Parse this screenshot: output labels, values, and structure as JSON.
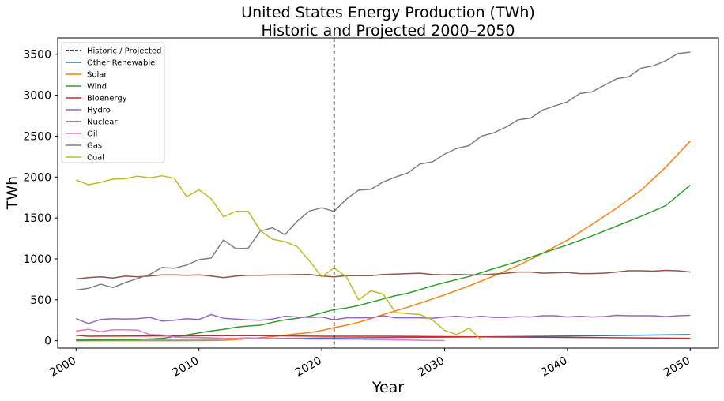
{
  "chart_data": {
    "type": "line",
    "title": "United States Energy Production (TWh)",
    "subtitle": "Historic and Projected 2000–2050",
    "xlabel": "Year",
    "ylabel": "TWh",
    "xlim": [
      1998.5,
      2052.3
    ],
    "ylim": [
      -90,
      3700
    ],
    "xticks": [
      2000,
      2010,
      2020,
      2030,
      2040,
      2050
    ],
    "yticks": [
      0,
      500,
      1000,
      1500,
      2000,
      2500,
      3000,
      3500
    ],
    "grid": false,
    "legend_position": "top-left",
    "reference_line": {
      "label": "Historic / Projected",
      "x": 2021,
      "color": "#000000",
      "style": "dashed"
    },
    "series": [
      {
        "name": "Other Renewable",
        "color": "#1f77b4",
        "x": [
          2000,
          2005,
          2010,
          2015,
          2020,
          2025,
          2030,
          2035,
          2040,
          2045,
          2050
        ],
        "values": [
          15,
          17,
          20,
          25,
          32,
          38,
          44,
          50,
          57,
          65,
          75
        ]
      },
      {
        "name": "Solar",
        "color": "#ff7f0e",
        "x": [
          2000,
          2008,
          2010,
          2012,
          2014,
          2016,
          2018,
          2019,
          2020,
          2021,
          2022,
          2023,
          2024,
          2025,
          2026,
          2027,
          2028,
          2029,
          2030,
          2032,
          2034,
          2036,
          2038,
          2040,
          2042,
          2044,
          2046,
          2048,
          2050
        ],
        "values": [
          0,
          1,
          2,
          5,
          25,
          50,
          85,
          100,
          125,
          160,
          190,
          225,
          270,
          320,
          365,
          410,
          460,
          510,
          560,
          670,
          790,
          920,
          1070,
          1230,
          1420,
          1620,
          1840,
          2120,
          2440
        ]
      },
      {
        "name": "Wind",
        "color": "#2ca02c",
        "x": [
          2000,
          2005,
          2007,
          2008,
          2009,
          2010,
          2011,
          2012,
          2013,
          2014,
          2015,
          2016,
          2017,
          2018,
          2019,
          2020,
          2021,
          2022,
          2023,
          2024,
          2025,
          2026,
          2027,
          2028,
          2029,
          2030,
          2032,
          2034,
          2036,
          2038,
          2040,
          2042,
          2044,
          2046,
          2048,
          2050
        ],
        "values": [
          5,
          15,
          30,
          50,
          70,
          95,
          120,
          140,
          165,
          180,
          190,
          225,
          255,
          275,
          300,
          340,
          380,
          400,
          430,
          470,
          510,
          550,
          580,
          625,
          670,
          710,
          785,
          880,
          970,
          1070,
          1170,
          1280,
          1400,
          1520,
          1650,
          1900
        ]
      },
      {
        "name": "Bioenergy",
        "color": "#d62728",
        "x": [
          2000,
          2001,
          2005,
          2010,
          2015,
          2020,
          2025,
          2030,
          2035,
          2040,
          2045,
          2050
        ],
        "values": [
          65,
          55,
          58,
          60,
          62,
          55,
          55,
          50,
          45,
          40,
          35,
          30
        ]
      },
      {
        "name": "Hydro",
        "color": "#9467bd",
        "x": [
          2000,
          2001,
          2002,
          2003,
          2004,
          2005,
          2006,
          2007,
          2008,
          2009,
          2010,
          2011,
          2012,
          2013,
          2014,
          2015,
          2016,
          2017,
          2018,
          2019,
          2020,
          2021,
          2022,
          2023,
          2024,
          2025,
          2026,
          2027,
          2028,
          2029,
          2030,
          2031,
          2032,
          2033,
          2034,
          2035,
          2036,
          2037,
          2038,
          2039,
          2040,
          2041,
          2042,
          2043,
          2044,
          2045,
          2046,
          2047,
          2048,
          2049,
          2050
        ],
        "values": [
          270,
          210,
          260,
          270,
          265,
          270,
          285,
          240,
          250,
          270,
          260,
          320,
          275,
          265,
          255,
          250,
          265,
          300,
          290,
          285,
          290,
          255,
          280,
          280,
          280,
          305,
          280,
          280,
          280,
          275,
          290,
          300,
          285,
          300,
          285,
          285,
          295,
          290,
          305,
          305,
          290,
          300,
          290,
          295,
          310,
          305,
          305,
          305,
          295,
          305,
          310
        ]
      },
      {
        "name": "Nuclear",
        "color": "#8c564b",
        "x": [
          2000,
          2001,
          2002,
          2003,
          2004,
          2005,
          2006,
          2007,
          2008,
          2009,
          2010,
          2011,
          2012,
          2013,
          2014,
          2015,
          2016,
          2017,
          2018,
          2019,
          2020,
          2021,
          2022,
          2023,
          2024,
          2025,
          2026,
          2027,
          2028,
          2029,
          2030,
          2031,
          2032,
          2033,
          2034,
          2035,
          2036,
          2037,
          2038,
          2039,
          2040,
          2041,
          2042,
          2043,
          2044,
          2045,
          2046,
          2047,
          2048,
          2049,
          2050
        ],
        "values": [
          755,
          770,
          780,
          765,
          790,
          780,
          790,
          805,
          805,
          800,
          805,
          790,
          770,
          790,
          800,
          800,
          805,
          805,
          808,
          810,
          790,
          780,
          795,
          795,
          795,
          810,
          815,
          820,
          825,
          810,
          805,
          810,
          805,
          805,
          815,
          825,
          840,
          840,
          825,
          830,
          835,
          820,
          820,
          825,
          840,
          855,
          855,
          850,
          860,
          855,
          840
        ]
      },
      {
        "name": "Oil",
        "color": "#e377c2",
        "x": [
          2000,
          2001,
          2002,
          2003,
          2004,
          2005,
          2006,
          2007,
          2008,
          2009,
          2010,
          2011,
          2012,
          2013,
          2014,
          2015,
          2016,
          2017,
          2018,
          2019,
          2020,
          2021,
          2022,
          2023,
          2024,
          2025,
          2026,
          2027,
          2028,
          2029,
          2030
        ],
        "values": [
          120,
          140,
          110,
          135,
          135,
          130,
          75,
          70,
          45,
          40,
          40,
          35,
          30,
          30,
          35,
          30,
          25,
          25,
          25,
          20,
          20,
          20,
          18,
          18,
          15,
          12,
          10,
          8,
          5,
          3,
          2
        ]
      },
      {
        "name": "Gas",
        "color": "#7f7f7f",
        "x": [
          2000,
          2001,
          2002,
          2003,
          2004,
          2005,
          2006,
          2007,
          2008,
          2009,
          2010,
          2011,
          2012,
          2013,
          2014,
          2015,
          2016,
          2017,
          2018,
          2019,
          2020,
          2021,
          2022,
          2023,
          2024,
          2025,
          2026,
          2027,
          2028,
          2029,
          2030,
          2031,
          2032,
          2033,
          2034,
          2035,
          2036,
          2037,
          2038,
          2039,
          2040,
          2041,
          2042,
          2043,
          2044,
          2045,
          2046,
          2047,
          2048,
          2049,
          2050
        ],
        "values": [
          620,
          640,
          690,
          650,
          710,
          760,
          810,
          895,
          885,
          925,
          990,
          1010,
          1230,
          1125,
          1130,
          1340,
          1380,
          1295,
          1460,
          1585,
          1625,
          1580,
          1730,
          1840,
          1850,
          1940,
          2000,
          2050,
          2160,
          2185,
          2280,
          2350,
          2385,
          2500,
          2540,
          2610,
          2700,
          2720,
          2820,
          2870,
          2920,
          3020,
          3040,
          3120,
          3200,
          3225,
          3330,
          3360,
          3420,
          3510,
          3525
        ]
      },
      {
        "name": "Coal",
        "color": "#bcbd22",
        "x": [
          2000,
          2001,
          2002,
          2003,
          2004,
          2005,
          2006,
          2007,
          2008,
          2009,
          2010,
          2011,
          2012,
          2013,
          2014,
          2015,
          2016,
          2017,
          2018,
          2019,
          2020,
          2021,
          2022,
          2023,
          2024,
          2025,
          2026,
          2027,
          2028,
          2029,
          2030,
          2031,
          2032,
          2033
        ],
        "values": [
          1965,
          1905,
          1935,
          1975,
          1980,
          2010,
          1990,
          2015,
          1985,
          1760,
          1845,
          1735,
          1515,
          1580,
          1580,
          1345,
          1240,
          1210,
          1150,
          975,
          780,
          890,
          780,
          500,
          610,
          570,
          345,
          330,
          320,
          255,
          125,
          75,
          155,
          5
        ]
      }
    ]
  }
}
